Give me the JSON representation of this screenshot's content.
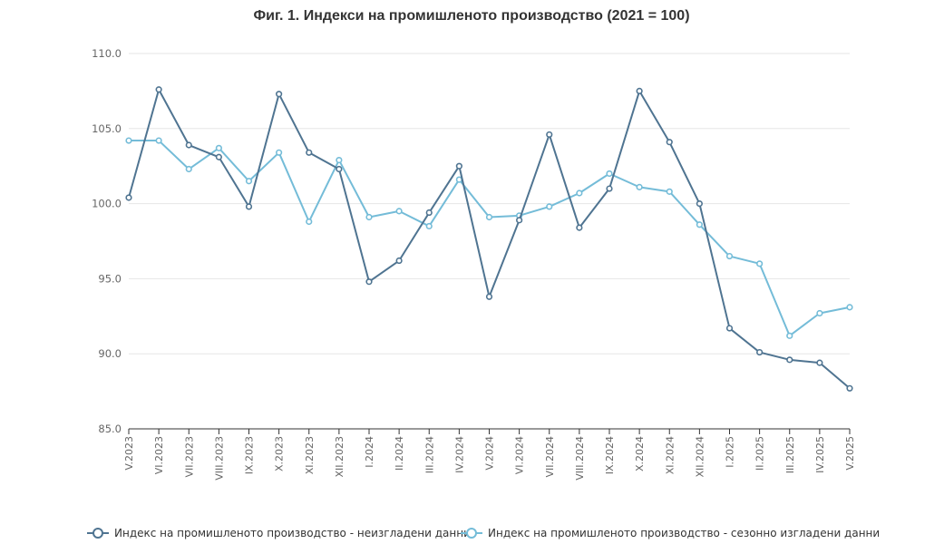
{
  "chart_data": {
    "type": "line",
    "title": "Фиг. 1. Индекси на промишленото производство (2021 = 100)",
    "xlabel": "",
    "ylabel": "",
    "ylim": [
      85.0,
      110.0
    ],
    "yticks": [
      "85.0",
      "90.0",
      "95.0",
      "100.0",
      "105.0",
      "110.0"
    ],
    "grid": true,
    "legend_position": "bottom",
    "categories": [
      "V.2023",
      "VI.2023",
      "VII.2023",
      "VIII.2023",
      "IX.2023",
      "X.2023",
      "XI.2023",
      "XII.2023",
      "I.2024",
      "II.2024",
      "III.2024",
      "IV.2024",
      "V.2024",
      "VI.2024",
      "VII.2024",
      "VIII.2024",
      "IX.2024",
      "X.2024",
      "XI.2024",
      "XII.2024",
      "I.2025",
      "II.2025",
      "III.2025",
      "IV.2025",
      "V.2025"
    ],
    "series": [
      {
        "name": "Индекс на промишленото производство - неизгладени данни",
        "color": "#4f7491",
        "values": [
          100.4,
          107.6,
          103.9,
          103.1,
          99.8,
          107.3,
          103.4,
          102.3,
          94.8,
          96.2,
          99.4,
          102.5,
          93.8,
          98.9,
          104.6,
          98.4,
          101.0,
          107.5,
          104.1,
          100.0,
          91.7,
          90.1,
          89.6,
          89.4,
          87.7
        ]
      },
      {
        "name": "Индекс на промишленото производство - сезонно изгладени данни",
        "color": "#74bcd8",
        "values": [
          104.2,
          104.2,
          102.3,
          103.7,
          101.5,
          103.4,
          98.8,
          102.9,
          99.1,
          99.5,
          98.5,
          101.6,
          99.1,
          99.2,
          99.8,
          100.7,
          102.0,
          101.1,
          100.8,
          98.6,
          96.5,
          96.0,
          91.2,
          92.7,
          93.1
        ]
      }
    ]
  }
}
